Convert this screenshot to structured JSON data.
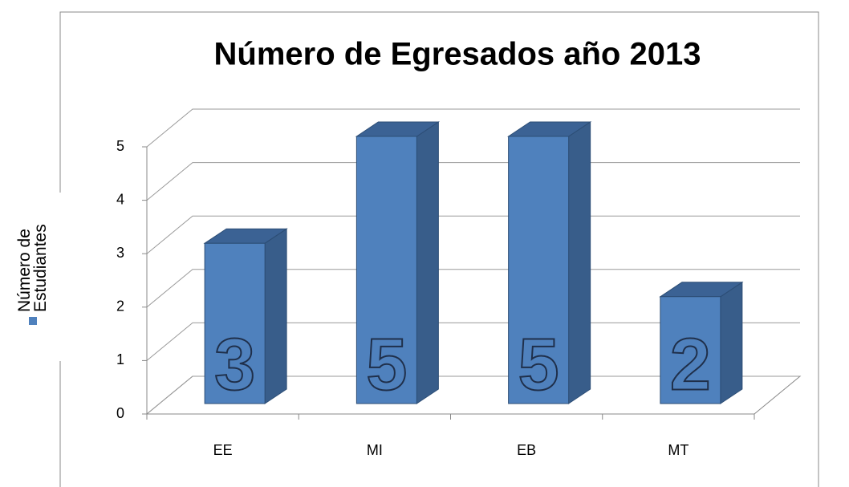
{
  "chart_data": {
    "type": "bar",
    "title": "Número de Egresados año 2013",
    "categories": [
      "EE",
      "MI",
      "EB",
      "MT"
    ],
    "series": [
      {
        "name": "Número de Estudiantes",
        "color": "#4f81bd",
        "values": [
          3,
          5,
          5,
          2
        ]
      }
    ],
    "ylim": [
      0,
      5
    ],
    "yticks": [
      0,
      1,
      2,
      3,
      4,
      5
    ],
    "grid": true,
    "legend": "left"
  }
}
